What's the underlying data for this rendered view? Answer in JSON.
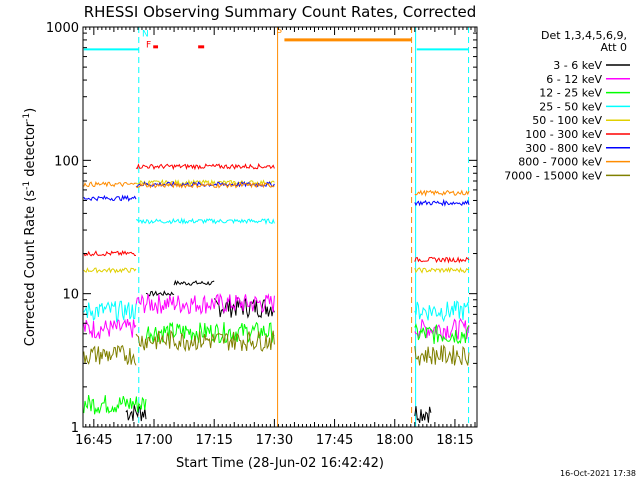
{
  "chart_data": {
    "type": "line",
    "title": "RHESSI Observing Summary Count Rates, Corrected",
    "xlabel": "Start Time (28-Jun-02 16:42:42)",
    "ylabel": "Corrected Count Rate (s⁻¹ detector⁻¹)",
    "ylabel_parts": [
      "Corrected Count Rate (s",
      "-1",
      " detector",
      "-1",
      ")"
    ],
    "yscale": "log",
    "ylim": [
      1,
      1000
    ],
    "xlim_minutes": [
      -2.7,
      95.5
    ],
    "x_tick_labels": [
      "16:45",
      "17:00",
      "17:15",
      "17:30",
      "17:45",
      "18:00",
      "18:15"
    ],
    "x_tick_minutes": [
      0,
      15,
      30,
      45,
      60,
      75,
      90
    ],
    "y_tick_labels": [
      "1",
      "10",
      "100",
      "1000"
    ],
    "y_tick_values": [
      1,
      10,
      100,
      1000
    ],
    "legend_header": [
      "Det 1,3,4,5,6,9,",
      "Att 0"
    ],
    "series": [
      {
        "name": "3 - 6 keV",
        "color": "#000000",
        "level": [
          1.3,
          11.0,
          1.3
        ],
        "segments": [
          [
            8,
            13,
            1.3
          ],
          [
            13,
            20,
            10
          ],
          [
            20,
            30,
            12
          ],
          [
            30,
            45,
            8
          ],
          [
            80,
            84,
            1.3
          ]
        ]
      },
      {
        "name": "6 - 12 keV",
        "color": "#ff00ff",
        "level": [
          5.5,
          9,
          5.5
        ],
        "segments": [
          [
            -2.5,
            10.5,
            5.5
          ],
          [
            10.5,
            45,
            8.5
          ],
          [
            80,
            93.5,
            5.5
          ]
        ]
      },
      {
        "name": "12 - 25 keV",
        "color": "#00ff00",
        "level": [
          4.5,
          5.5,
          4.5
        ],
        "segments": [
          [
            -2.5,
            13,
            1.5
          ],
          [
            13,
            45,
            5.2
          ],
          [
            80,
            93.5,
            5.0
          ]
        ]
      },
      {
        "name": "25 - 50 keV",
        "color": "#00ffff",
        "level": [
          7.5,
          35,
          7.5
        ],
        "segments": [
          [
            -2.5,
            10.5,
            7.5
          ],
          [
            10.5,
            45,
            35
          ],
          [
            80,
            93.5,
            7.5
          ]
        ]
      },
      {
        "name": "50 - 100 keV",
        "color": "#e0d000",
        "level": [
          15,
          68,
          15
        ],
        "segments": [
          [
            -2.5,
            10.5,
            15
          ],
          [
            10.5,
            45,
            68
          ],
          [
            80,
            93.5,
            15
          ]
        ]
      },
      {
        "name": "100 - 300 keV",
        "color": "#ff0000",
        "level": [
          20,
          90,
          18
        ],
        "segments": [
          [
            -2.5,
            10.5,
            20
          ],
          [
            10.5,
            45,
            90
          ],
          [
            80,
            93.5,
            18
          ]
        ]
      },
      {
        "name": "300 - 800 keV",
        "color": "#0000ff",
        "level": [
          55,
          70,
          47
        ],
        "segments": [
          [
            -2.5,
            10.5,
            52
          ],
          [
            10.5,
            45,
            66
          ],
          [
            80,
            93.5,
            48
          ]
        ]
      },
      {
        "name": "800 - 7000 keV",
        "color": "#ff8c00",
        "level": [
          66,
          65,
          55
        ],
        "segments": [
          [
            -2.5,
            10.5,
            66
          ],
          [
            10.5,
            45,
            65
          ],
          [
            80,
            93.5,
            57
          ]
        ]
      },
      {
        "name": "7000 - 15000 keV",
        "color": "#808000",
        "level": [
          3.5,
          4.5,
          3.5
        ],
        "segments": [
          [
            -2.5,
            10.5,
            3.5
          ],
          [
            10.5,
            45,
            4.5
          ],
          [
            80,
            93.5,
            3.5
          ]
        ]
      }
    ],
    "annotations": [
      {
        "text": "N",
        "color": "#00ffff",
        "x_minute": 12.0,
        "y": 850
      },
      {
        "text": "F",
        "color": "#ff0000",
        "x_minute": 13.0,
        "y": 700
      },
      {
        "text": "S",
        "color": "#ff8c00",
        "x_minute": 45.5,
        "y": 900
      }
    ],
    "flare_marks": {
      "color": "#ff0000",
      "y": 710,
      "x_minute_ranges": [
        [
          14.8,
          16.0
        ],
        [
          26.0,
          27.5
        ]
      ]
    },
    "night_level": {
      "color": "#00ffff",
      "y": 680,
      "x_minute_ranges": [
        [
          -2.5,
          11.2
        ],
        [
          80.5,
          93.3
        ]
      ]
    },
    "saa_level": {
      "color": "#ff8c00",
      "y": 800,
      "x_minute_ranges": [
        [
          47.5,
          79.2
        ]
      ]
    },
    "vlines": [
      {
        "x_minute": 11.2,
        "color": "#00ffff",
        "style": "dashed"
      },
      {
        "x_minute": 45.8,
        "color": "#ff8c00",
        "style": "solid"
      },
      {
        "x_minute": 79.2,
        "color": "#ff8c00",
        "style": "dashed"
      },
      {
        "x_minute": 80.2,
        "color": "#00ffff",
        "style": "solid"
      },
      {
        "x_minute": 93.4,
        "color": "#00ffff",
        "style": "dashed"
      }
    ],
    "footer": "16-Oct-2021 17:38"
  }
}
